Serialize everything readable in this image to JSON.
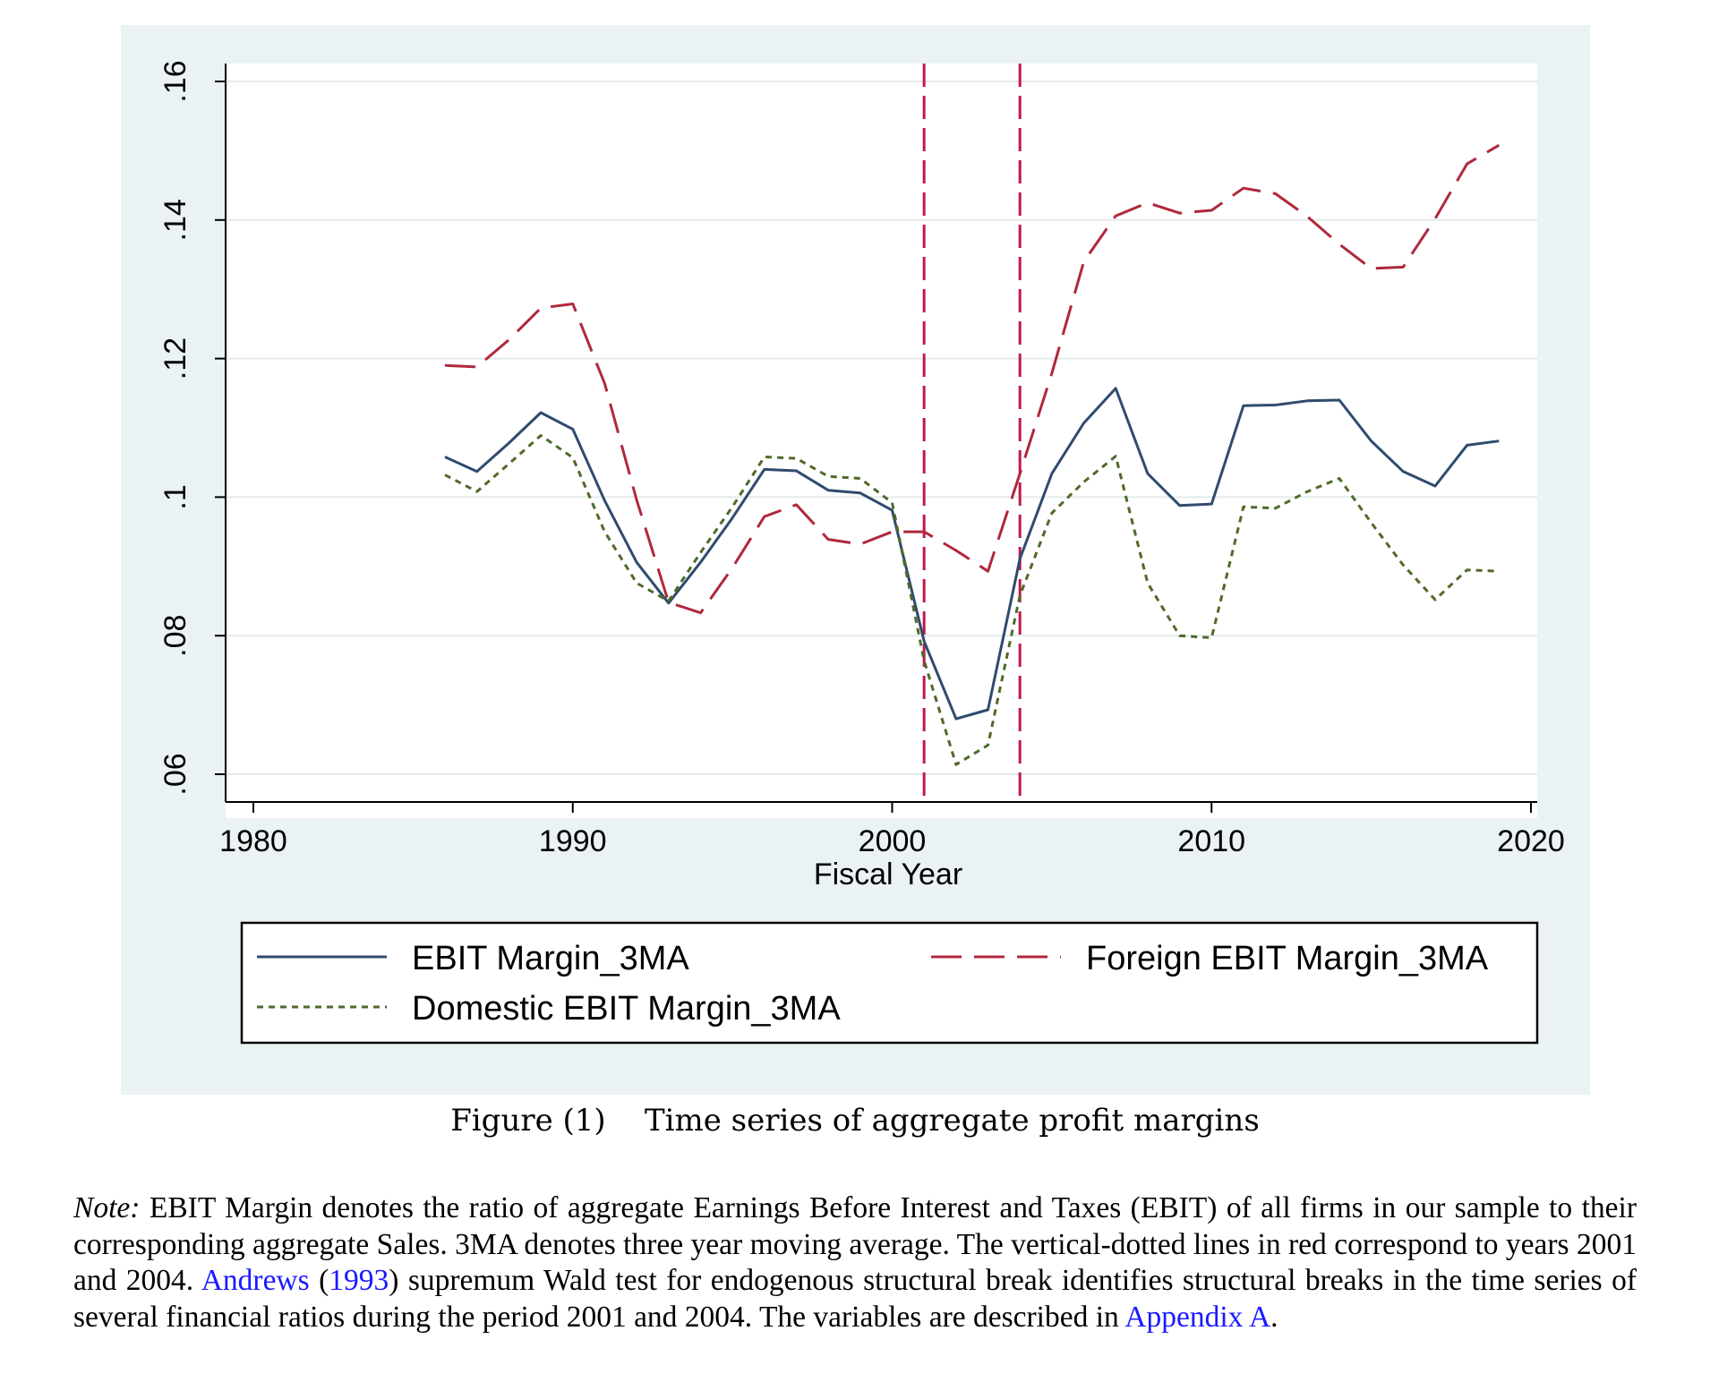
{
  "chart_data": {
    "type": "line",
    "xlabel": "Fiscal Year",
    "ylabel": "",
    "xlim": [
      1980,
      2020
    ],
    "ylim": [
      0.06,
      0.16
    ],
    "x_ticks": [
      1980,
      1990,
      2000,
      2010,
      2020
    ],
    "y_ticks": [
      0.06,
      0.08,
      0.1,
      0.12,
      0.14,
      0.16
    ],
    "y_tick_labels": [
      ".06",
      ".08",
      ".1",
      ".12",
      ".14",
      ".16"
    ],
    "grid": true,
    "vertical_lines": [
      2001,
      2004
    ],
    "vertical_line_color": "#c0184a",
    "x": [
      1986,
      1987,
      1988,
      1989,
      1990,
      1991,
      1992,
      1993,
      1994,
      1995,
      1996,
      1997,
      1998,
      1999,
      2000,
      2001,
      2002,
      2003,
      2004,
      2005,
      2006,
      2007,
      2008,
      2009,
      2010,
      2011,
      2012,
      2013,
      2014,
      2015,
      2016,
      2017,
      2018,
      2019
    ],
    "series": [
      {
        "name": "EBIT Margin_3MA",
        "color": "#2f4b6e",
        "style": "solid",
        "values": [
          0.1058,
          0.1037,
          0.1078,
          0.1122,
          0.1098,
          0.0995,
          0.0906,
          0.0847,
          0.0906,
          0.097,
          0.104,
          0.1038,
          0.101,
          0.1006,
          0.0981,
          0.0792,
          0.068,
          0.0693,
          0.0911,
          0.1034,
          0.1107,
          0.1157,
          0.1034,
          0.0988,
          0.099,
          0.1132,
          0.1133,
          0.1139,
          0.114,
          0.1081,
          0.1037,
          0.1016,
          0.1075,
          0.1081
        ]
      },
      {
        "name": "Foreign EBIT Margin_3MA",
        "color": "#b0283c",
        "style": "long-dash",
        "values": [
          0.119,
          0.1188,
          0.1227,
          0.1273,
          0.1279,
          0.1164,
          0.0996,
          0.0848,
          0.0833,
          0.0898,
          0.0972,
          0.0989,
          0.0939,
          0.0932,
          0.095,
          0.095,
          0.0923,
          0.0893,
          0.1034,
          0.1179,
          0.134,
          0.1406,
          0.1425,
          0.141,
          0.1414,
          0.1446,
          0.1438,
          0.1405,
          0.1365,
          0.133,
          0.1332,
          0.1402,
          0.1481,
          0.1508
        ]
      },
      {
        "name": "Domestic EBIT Margin_3MA",
        "color": "#4f6a2a",
        "style": "dotted",
        "values": [
          0.1032,
          0.1008,
          0.1048,
          0.1089,
          0.1057,
          0.095,
          0.0876,
          0.085,
          0.092,
          0.0986,
          0.1058,
          0.1056,
          0.103,
          0.1027,
          0.0992,
          0.0764,
          0.0614,
          0.0642,
          0.0858,
          0.0977,
          0.1022,
          0.1059,
          0.0876,
          0.08,
          0.0797,
          0.0986,
          0.0984,
          0.1008,
          0.1027,
          0.0963,
          0.0902,
          0.0852,
          0.0895,
          0.0893
        ]
      }
    ]
  },
  "caption": {
    "label": "Figure (1)",
    "title": "Time series of aggregate profit margins"
  },
  "note": {
    "label": "Note:",
    "text_1": " EBIT Margin denotes the ratio of aggregate Earnings Before Interest and Taxes (EBIT) of all firms in our sample to their corresponding aggregate Sales. 3MA denotes three year moving average. The vertical-dotted lines in red correspond to years 2001 and 2004. ",
    "link_author": "Andrews",
    "paren_open": " (",
    "link_year": "1993",
    "text_2": ") supremum Wald test for endogenous structural break identifies structural breaks in the time series of several financial ratios during the period 2001 and 2004. The variables are described in ",
    "link_appendix": "Appendix A",
    "text_3": "."
  }
}
